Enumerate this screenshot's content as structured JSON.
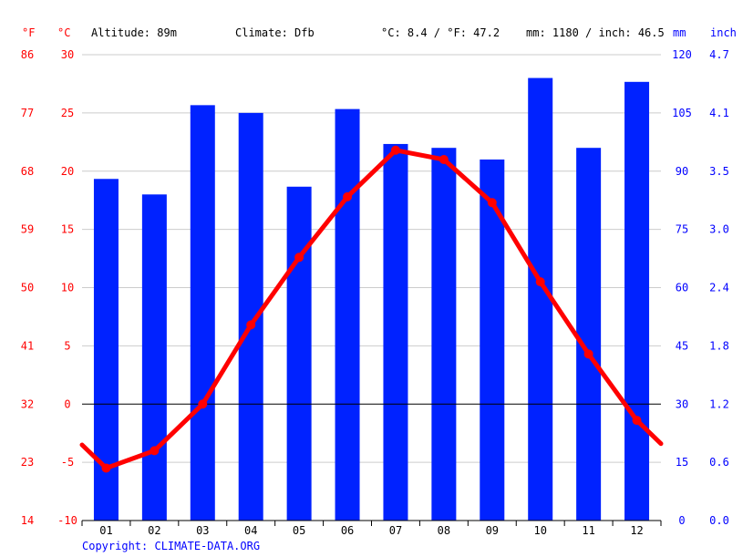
{
  "header": {
    "f_unit": "°F",
    "c_unit": "°C",
    "altitude": "Altitude: 89m",
    "climate": "Climate: Dfb",
    "avg_temp": "°C: 8.4 / °F: 47.2",
    "precip_total": "mm: 1180 / inch: 46.5",
    "mm_unit": "mm",
    "inch_unit": "inch"
  },
  "copyright": "Copyright: CLIMATE-DATA.ORG",
  "colors": {
    "temperature": "#ff0000",
    "precipitation": "#0022ff",
    "zero_line": "#000000",
    "grid": "#cccccc"
  },
  "chart_data": {
    "type": "bar",
    "categories": [
      "01",
      "02",
      "03",
      "04",
      "05",
      "06",
      "07",
      "08",
      "09",
      "10",
      "11",
      "12"
    ],
    "series": [
      {
        "values": [
          88,
          84,
          107,
          105,
          86,
          106,
          97,
          96,
          93,
          114,
          96,
          113
        ],
        "type": "bar",
        "axis": "mm"
      },
      {
        "values": [
          -5.5,
          -4.0,
          0.0,
          6.8,
          12.6,
          17.8,
          21.8,
          21.0,
          17.3,
          10.5,
          4.3,
          -1.4
        ],
        "type": "line",
        "axis": "°C"
      }
    ],
    "line_start_value": -3.5,
    "line_end_value": -3.4,
    "left_axis_c": {
      "ticks": [
        30,
        25,
        20,
        15,
        10,
        5,
        0,
        -5,
        -10
      ],
      "ylim": [
        -10,
        30
      ]
    },
    "left_axis_f": {
      "ticks": [
        "86",
        "77",
        "68",
        "59",
        "50",
        "41",
        "32",
        "23",
        "14"
      ]
    },
    "right_axis_mm": {
      "ticks": [
        120,
        105,
        90,
        75,
        60,
        45,
        30,
        15,
        0
      ],
      "ylim": [
        0,
        120
      ]
    },
    "right_axis_inch": {
      "ticks": [
        "4.7",
        "4.1",
        "3.5",
        "3.0",
        "2.4",
        "1.8",
        "1.2",
        "0.6",
        "0.0"
      ]
    },
    "grid": true
  }
}
